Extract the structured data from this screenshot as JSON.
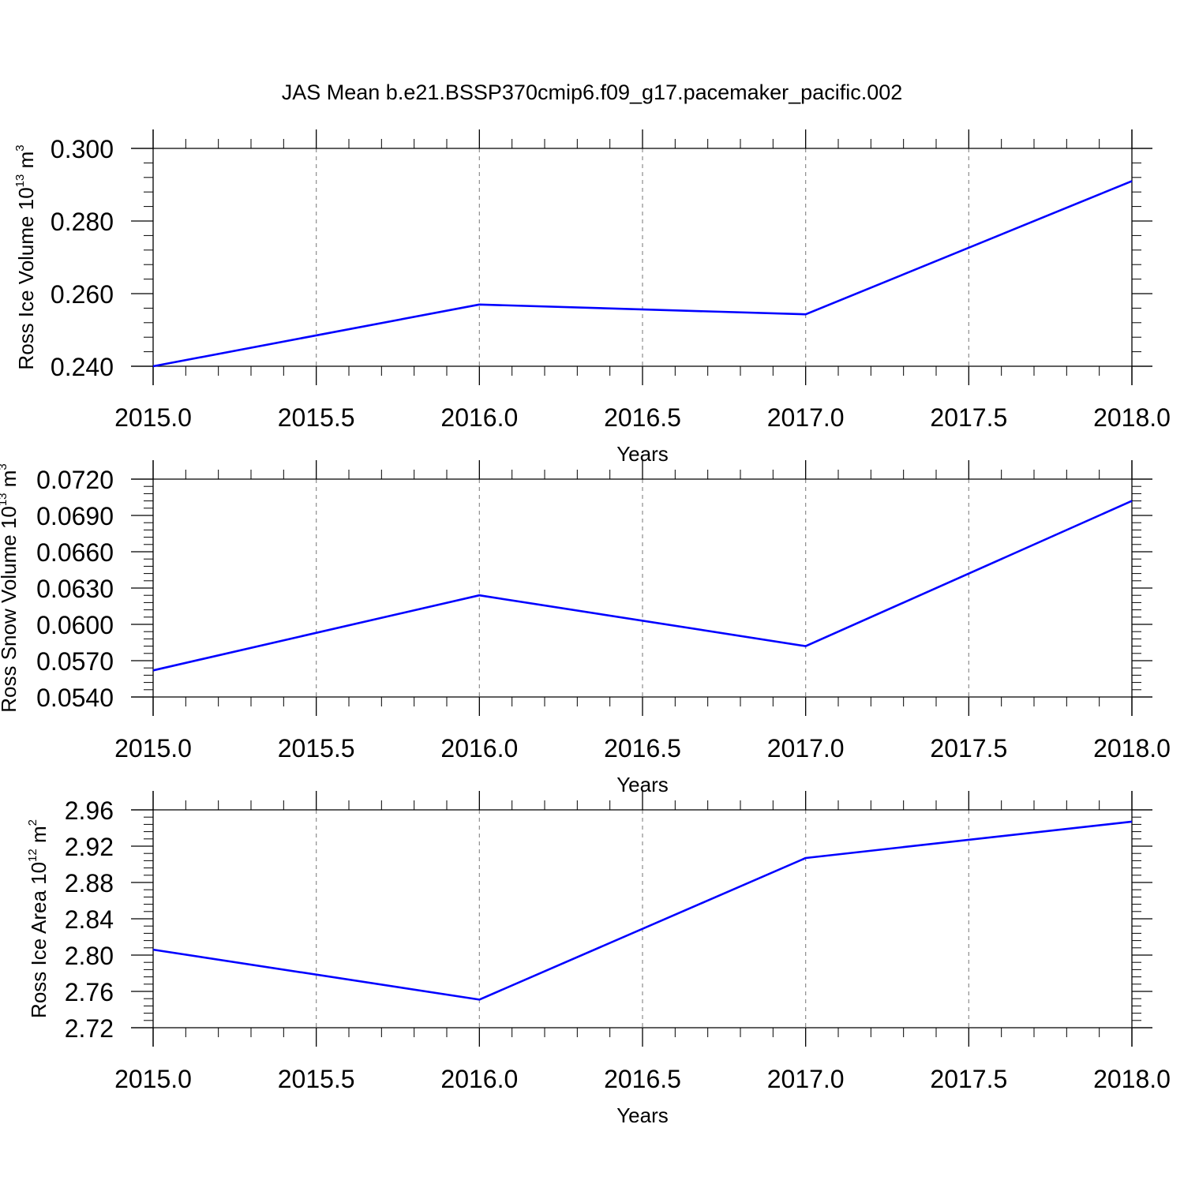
{
  "title": "JAS Mean b.e21.BSSP370cmip6.f09_g17.pacemaker_pacific.002",
  "colors": {
    "line": "#0000ff",
    "axis": "#000000",
    "grid": "#8c8c8c"
  },
  "chart_data": [
    {
      "type": "line",
      "xlabel": "Years",
      "ylabel": {
        "text": "Ross Ice Volume 10",
        "sup": "13",
        "unit": " m",
        "unit_sup": "3"
      },
      "xlim": [
        2015.0,
        2018.0
      ],
      "ylim": [
        0.24,
        0.3
      ],
      "x_ticks": [
        "2015.0",
        "2015.5",
        "2016.0",
        "2016.5",
        "2017.0",
        "2017.5",
        "2018.0"
      ],
      "y_ticks": [
        "0.240",
        "0.260",
        "0.280",
        "0.300"
      ],
      "grid": "vertical dashed at major x ticks",
      "series": [
        {
          "x": [
            2015,
            2016,
            2017,
            2018
          ],
          "values": [
            0.24,
            0.257,
            0.2543,
            0.291
          ]
        }
      ]
    },
    {
      "type": "line",
      "xlabel": "Years",
      "ylabel": {
        "text": "Ross Snow Volume 10",
        "sup": "13",
        "unit": " m",
        "unit_sup": "3"
      },
      "xlim": [
        2015.0,
        2018.0
      ],
      "ylim": [
        0.054,
        0.072
      ],
      "x_ticks": [
        "2015.0",
        "2015.5",
        "2016.0",
        "2016.5",
        "2017.0",
        "2017.5",
        "2018.0"
      ],
      "y_ticks": [
        "0.0540",
        "0.0570",
        "0.0600",
        "0.0630",
        "0.0660",
        "0.0690",
        "0.0720"
      ],
      "grid": "vertical dashed at major x ticks",
      "series": [
        {
          "x": [
            2015,
            2016,
            2017,
            2018
          ],
          "values": [
            0.0562,
            0.0624,
            0.0582,
            0.0702
          ]
        }
      ]
    },
    {
      "type": "line",
      "xlabel": "Years",
      "ylabel": {
        "text": "Ross Ice Area 10",
        "sup": "12",
        "unit": " m",
        "unit_sup": "2"
      },
      "xlim": [
        2015.0,
        2018.0
      ],
      "ylim": [
        2.72,
        2.96
      ],
      "x_ticks": [
        "2015.0",
        "2015.5",
        "2016.0",
        "2016.5",
        "2017.0",
        "2017.5",
        "2018.0"
      ],
      "y_ticks": [
        "2.72",
        "2.76",
        "2.80",
        "2.84",
        "2.88",
        "2.92",
        "2.96"
      ],
      "grid": "vertical dashed at major x ticks",
      "series": [
        {
          "x": [
            2015,
            2016,
            2017,
            2018
          ],
          "values": [
            2.806,
            2.751,
            2.907,
            2.947
          ]
        }
      ]
    }
  ]
}
